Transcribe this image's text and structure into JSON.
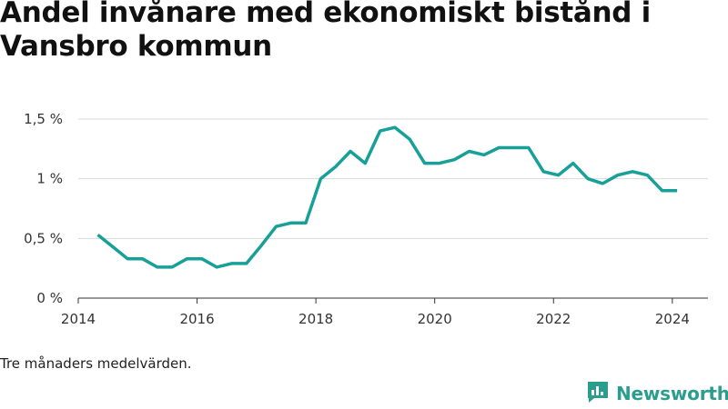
{
  "title": "Andel invånare med ekonomiskt bistånd i Vansbro kommun",
  "footnote": "Tre månaders medelvärden.",
  "brand": {
    "name": "Newsworthy",
    "icon": "bar-chart-speech-bubble-icon",
    "color": "#2a9d8f"
  },
  "chart_data": {
    "type": "line",
    "title": "Andel invånare med ekonomiskt bistånd i Vansbro kommun",
    "xlabel": "",
    "ylabel": "",
    "xlim": [
      2014,
      2024.6
    ],
    "ylim": [
      0,
      1.5
    ],
    "grid": true,
    "x_ticks": [
      {
        "value": 2014,
        "label": "2014"
      },
      {
        "value": 2016,
        "label": "2016"
      },
      {
        "value": 2018,
        "label": "2018"
      },
      {
        "value": 2020,
        "label": "2020"
      },
      {
        "value": 2022,
        "label": "2022"
      },
      {
        "value": 2024,
        "label": "2024"
      }
    ],
    "y_ticks": [
      {
        "value": 0,
        "label": "0 %"
      },
      {
        "value": 0.5,
        "label": "0,5 %"
      },
      {
        "value": 1,
        "label": "1 %"
      },
      {
        "value": 1.5,
        "label": "1,5 %"
      }
    ],
    "line_color": "#17a097",
    "series": [
      {
        "x": [
          2014.33,
          2014.58,
          2014.83,
          2015.08,
          2015.33,
          2015.58,
          2015.83,
          2016.08,
          2016.33,
          2016.58,
          2016.83,
          2017.08,
          2017.33,
          2017.58,
          2017.83,
          2018.08,
          2018.33,
          2018.58,
          2018.83,
          2019.08,
          2019.33,
          2019.58,
          2019.83,
          2020.08,
          2020.33,
          2020.58,
          2020.83,
          2021.08,
          2021.33,
          2021.58,
          2021.83,
          2022.08,
          2022.33,
          2022.58,
          2022.83,
          2023.08,
          2023.33,
          2023.58,
          2023.83,
          2024.08
        ],
        "values": [
          0.53,
          0.43,
          0.33,
          0.33,
          0.26,
          0.26,
          0.33,
          0.33,
          0.26,
          0.29,
          0.29,
          0.44,
          0.6,
          0.63,
          0.63,
          1.0,
          1.1,
          1.23,
          1.13,
          1.4,
          1.43,
          1.33,
          1.13,
          1.13,
          1.16,
          1.23,
          1.2,
          1.26,
          1.26,
          1.26,
          1.06,
          1.03,
          1.13,
          1.0,
          0.96,
          1.03,
          1.06,
          1.03,
          0.9,
          0.9
        ]
      }
    ]
  }
}
